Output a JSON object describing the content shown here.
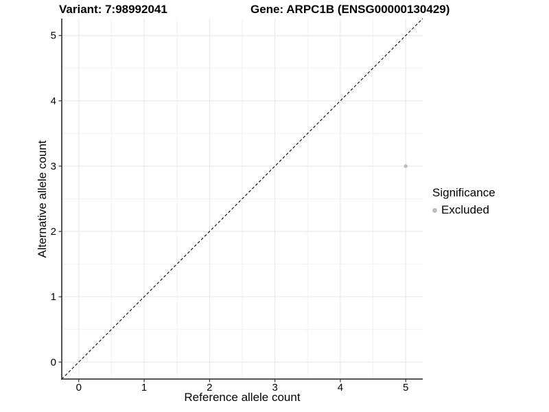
{
  "chart_data": {
    "type": "scatter",
    "titles": {
      "left": "Variant: 7:98992041",
      "right": "Gene: ARPC1B (ENSG00000130429)"
    },
    "xlabel": "Reference allele count",
    "ylabel": "Alternative allele count",
    "xlim": [
      -0.26,
      5.26
    ],
    "ylim": [
      -0.26,
      5.26
    ],
    "x_ticks": [
      0,
      1,
      2,
      3,
      4,
      5
    ],
    "y_ticks": [
      0,
      1,
      2,
      3,
      4,
      5
    ],
    "x_minor_ticks": [
      0.5,
      1.5,
      2.5,
      3.5,
      4.5
    ],
    "y_minor_ticks": [
      0.5,
      1.5,
      2.5,
      3.5,
      4.5
    ],
    "grid": true,
    "series": [
      {
        "name": "Excluded",
        "color": "#bdbdbd",
        "marker": "circle",
        "points": [
          {
            "x": 5,
            "y": 3
          }
        ]
      }
    ],
    "reference_line": {
      "type": "identity",
      "style": "dashed",
      "color": "#000000",
      "from": [
        -0.26,
        -0.26
      ],
      "to": [
        5.26,
        5.26
      ]
    },
    "legend": {
      "title": "Significance",
      "position": "right",
      "items": [
        {
          "label": "Excluded",
          "color": "#bdbdbd",
          "marker": "circle"
        }
      ]
    }
  },
  "colors": {
    "background": "#ffffff",
    "grid_major": "#e6e6e6",
    "grid_minor": "#f2f2f2",
    "axis_line": "#404040",
    "tick_mark": "#333333",
    "text": "#000000",
    "point_excluded": "#bdbdbd"
  }
}
